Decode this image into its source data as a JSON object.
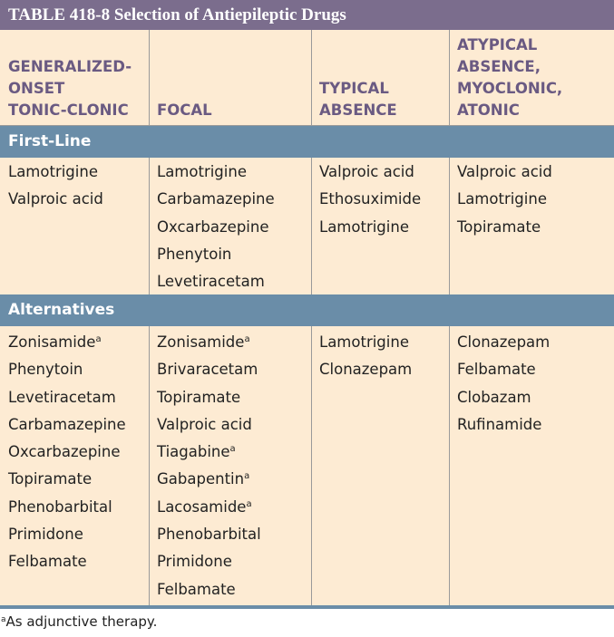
{
  "table": {
    "title": "TABLE 418-8  Selection of Antiepileptic Drugs",
    "headers": [
      "GENERALIZED-\nONSET\nTONIC-CLONIC",
      "FOCAL",
      "TYPICAL\nABSENCE",
      "ATYPICAL\nABSENCE,\nMYOCLONIC,\nATONIC"
    ],
    "sections": [
      {
        "label": "First-Line",
        "columns": [
          [
            "Lamotrigine",
            "Valproic acid"
          ],
          [
            "Lamotrigine",
            "Carbamazepine",
            "Oxcarbazepine",
            "Phenytoin",
            "Levetiracetam"
          ],
          [
            "Valproic acid",
            "Ethosuximide",
            "Lamotrigine"
          ],
          [
            "Valproic acid",
            "Lamotrigine",
            "Topiramate"
          ]
        ]
      },
      {
        "label": "Alternatives",
        "columns": [
          [
            "Zonisamide",
            "Phenytoin",
            "Levetiracetam",
            "Carbamazepine",
            "Oxcarbazepine",
            "Topiramate",
            "Phenobarbital",
            "Primidone",
            "Felbamate"
          ],
          [
            "Zonisamide",
            "Brivaracetam",
            "Topiramate",
            "Valproic acid",
            "Tiagabine",
            "Gabapentin",
            "Lacosamide",
            "Phenobarbital",
            "Primidone",
            "Felbamate"
          ],
          [
            "Lamotrigine",
            "Clonazepam"
          ],
          [
            "Clonazepam",
            "Felbamate",
            "Clobazam",
            "Rufinamide"
          ]
        ],
        "superscripted": {
          "0": [
            "Zonisamide"
          ],
          "1": [
            "Zonisamide",
            "Tiagabine",
            "Gabapentin",
            "Lacosamide"
          ]
        }
      }
    ],
    "footnote": {
      "mark": "a",
      "text": "As adjunctive therapy."
    }
  },
  "colors": {
    "title_bar": "#7b6d8d",
    "section_band": "#6a8da8",
    "body_background": "#fdebd3",
    "header_text": "#6a5a82"
  }
}
